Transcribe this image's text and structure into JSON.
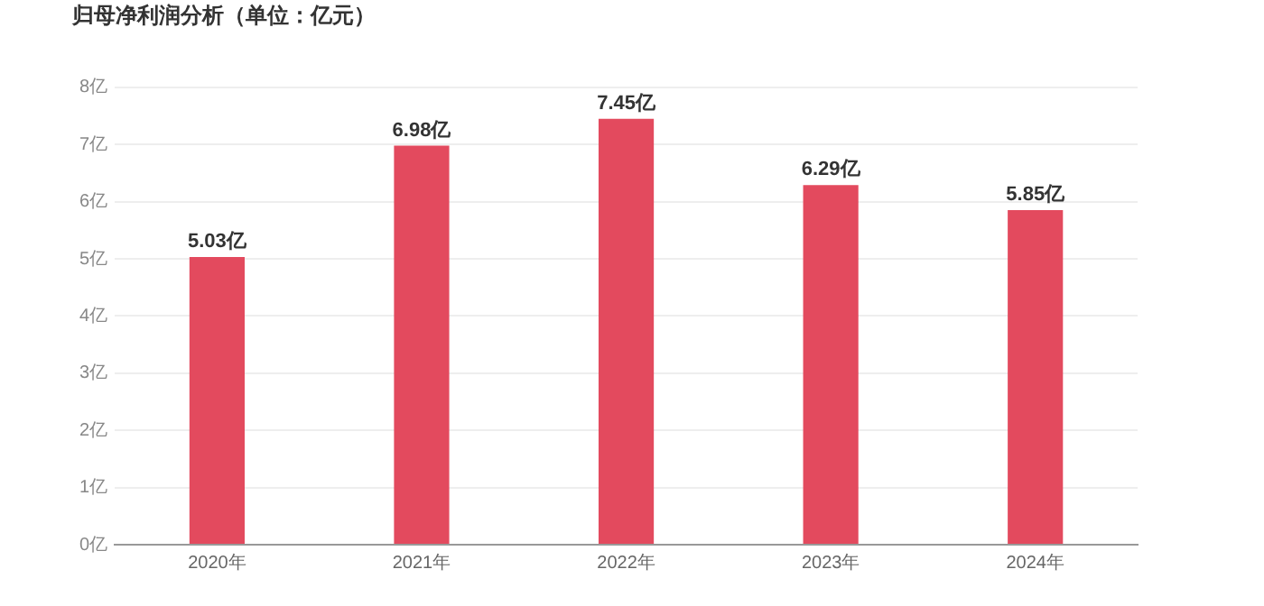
{
  "chart_data": {
    "type": "bar",
    "title": "归母净利润分析（单位：亿元）",
    "categories": [
      "2020年",
      "2021年",
      "2022年",
      "2023年",
      "2024年"
    ],
    "values": [
      5.03,
      6.98,
      7.45,
      6.29,
      5.85
    ],
    "value_labels": [
      "5.03亿",
      "6.98亿",
      "7.45亿",
      "6.29亿",
      "5.85亿"
    ],
    "color": "#e34a5e",
    "ylim": [
      0,
      8
    ],
    "yticks": [
      {
        "value": 0,
        "label": "0亿"
      },
      {
        "value": 1,
        "label": "1亿"
      },
      {
        "value": 2,
        "label": "2亿"
      },
      {
        "value": 3,
        "label": "3亿"
      },
      {
        "value": 4,
        "label": "4亿"
      },
      {
        "value": 5,
        "label": "5亿"
      },
      {
        "value": 6,
        "label": "6亿"
      },
      {
        "value": 7,
        "label": "7亿"
      },
      {
        "value": 8,
        "label": "8亿"
      }
    ],
    "grid": "y",
    "legend": false
  }
}
